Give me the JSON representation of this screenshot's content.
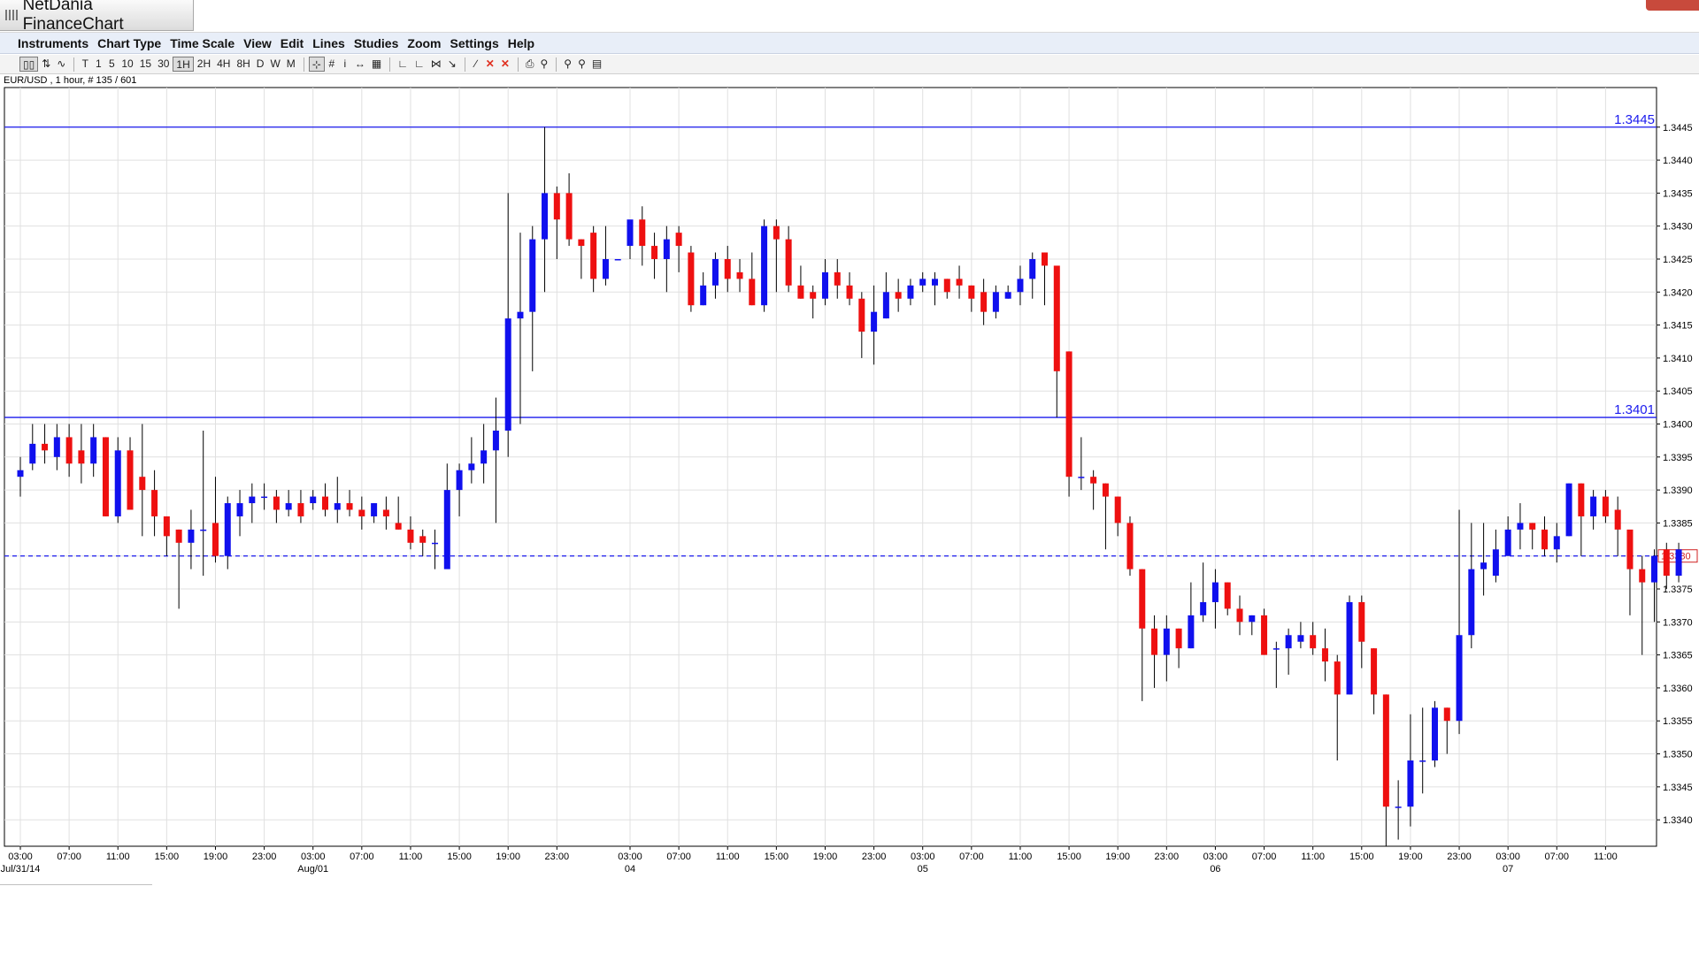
{
  "window": {
    "title": "NetDania FinanceChart"
  },
  "menu": [
    "Instruments",
    "Chart Type",
    "Time Scale",
    "View",
    "Edit",
    "Lines",
    "Studies",
    "Zoom",
    "Settings",
    "Help"
  ],
  "toolbar": {
    "timeframes": [
      "T",
      "1",
      "5",
      "10",
      "15",
      "30",
      "1H",
      "2H",
      "4H",
      "8H",
      "D",
      "W",
      "M"
    ],
    "selected_timeframe": "1H"
  },
  "instrument_label": "EUR/USD , 1 hour, # 135 / 601",
  "colors": {
    "up": "#1010ee",
    "down": "#ee1010",
    "hline": "#1a1aee",
    "grid": "#e0e0e0"
  },
  "chart_data": {
    "type": "candlestick",
    "ylim": [
      1.3336,
      1.3451
    ],
    "y_ticks": [
      "1.3445",
      "1.3440",
      "1.3435",
      "1.3430",
      "1.3425",
      "1.3420",
      "1.3415",
      "1.3410",
      "1.3405",
      "1.3400",
      "1.3395",
      "1.3390",
      "1.3385",
      "1.3380",
      "1.3375",
      "1.3370",
      "1.3365",
      "1.3360",
      "1.3355",
      "1.3350",
      "1.3345",
      "1.3340"
    ],
    "x_ticks": [
      {
        "i": 0,
        "label": "03:00",
        "date": "Jul/31/14"
      },
      {
        "i": 4,
        "label": "07:00"
      },
      {
        "i": 8,
        "label": "11:00"
      },
      {
        "i": 12,
        "label": "15:00"
      },
      {
        "i": 16,
        "label": "19:00"
      },
      {
        "i": 20,
        "label": "23:00"
      },
      {
        "i": 24,
        "label": "03:00",
        "date": "Aug/01"
      },
      {
        "i": 28,
        "label": "07:00"
      },
      {
        "i": 32,
        "label": "11:00"
      },
      {
        "i": 36,
        "label": "15:00"
      },
      {
        "i": 40,
        "label": "19:00"
      },
      {
        "i": 44,
        "label": "23:00"
      },
      {
        "i": 50,
        "label": "03:00",
        "date": "04"
      },
      {
        "i": 54,
        "label": "07:00"
      },
      {
        "i": 58,
        "label": "11:00"
      },
      {
        "i": 62,
        "label": "15:00"
      },
      {
        "i": 66,
        "label": "19:00"
      },
      {
        "i": 70,
        "label": "23:00"
      },
      {
        "i": 74,
        "label": "03:00",
        "date": "05"
      },
      {
        "i": 78,
        "label": "07:00"
      },
      {
        "i": 82,
        "label": "11:00"
      },
      {
        "i": 86,
        "label": "15:00"
      },
      {
        "i": 90,
        "label": "19:00"
      },
      {
        "i": 94,
        "label": "23:00"
      },
      {
        "i": 98,
        "label": "03:00",
        "date": "06"
      },
      {
        "i": 102,
        "label": "07:00"
      },
      {
        "i": 106,
        "label": "11:00"
      },
      {
        "i": 110,
        "label": "15:00"
      },
      {
        "i": 114,
        "label": "19:00"
      },
      {
        "i": 118,
        "label": "23:00"
      },
      {
        "i": 122,
        "label": "03:00",
        "date": "07"
      },
      {
        "i": 126,
        "label": "07:00"
      },
      {
        "i": 130,
        "label": "11:00"
      }
    ],
    "hlines": [
      {
        "value": 1.3445,
        "label": "1.3445"
      },
      {
        "value": 1.3401,
        "label": "1.3401"
      }
    ],
    "last_price": {
      "value": 1.338,
      "label": "1.3380"
    },
    "candles": [
      [
        1.3392,
        1.3395,
        1.3389,
        1.3393
      ],
      [
        1.3394,
        1.34,
        1.3393,
        1.3397
      ],
      [
        1.3397,
        1.34,
        1.3394,
        1.3396
      ],
      [
        1.3395,
        1.34,
        1.3393,
        1.3398
      ],
      [
        1.3398,
        1.34,
        1.3392,
        1.3394
      ],
      [
        1.3396,
        1.34,
        1.3391,
        1.3394
      ],
      [
        1.3394,
        1.34,
        1.3392,
        1.3398
      ],
      [
        1.3398,
        1.3398,
        1.3386,
        1.3386
      ],
      [
        1.3386,
        1.3398,
        1.3385,
        1.3396
      ],
      [
        1.3396,
        1.3398,
        1.3387,
        1.3387
      ],
      [
        1.3392,
        1.34,
        1.3383,
        1.339
      ],
      [
        1.339,
        1.3393,
        1.3383,
        1.3386
      ],
      [
        1.3386,
        1.3386,
        1.338,
        1.3383
      ],
      [
        1.3384,
        1.3384,
        1.3372,
        1.3382
      ],
      [
        1.3382,
        1.3387,
        1.3378,
        1.3384
      ],
      [
        1.3384,
        1.3399,
        1.3377,
        1.3384
      ],
      [
        1.3385,
        1.3392,
        1.3379,
        1.338
      ],
      [
        1.338,
        1.3389,
        1.3378,
        1.3388
      ],
      [
        1.3386,
        1.339,
        1.3383,
        1.3388
      ],
      [
        1.3388,
        1.3391,
        1.3385,
        1.3389
      ],
      [
        1.3389,
        1.3391,
        1.3387,
        1.3389
      ],
      [
        1.3389,
        1.339,
        1.3385,
        1.3387
      ],
      [
        1.3387,
        1.339,
        1.3386,
        1.3388
      ],
      [
        1.3388,
        1.339,
        1.3385,
        1.3386
      ],
      [
        1.3388,
        1.339,
        1.3387,
        1.3389
      ],
      [
        1.3389,
        1.3391,
        1.3386,
        1.3387
      ],
      [
        1.3387,
        1.3392,
        1.3385,
        1.3388
      ],
      [
        1.3388,
        1.339,
        1.3386,
        1.3387
      ],
      [
        1.3387,
        1.3389,
        1.3384,
        1.3386
      ],
      [
        1.3386,
        1.3388,
        1.3385,
        1.3388
      ],
      [
        1.3387,
        1.3389,
        1.3384,
        1.3386
      ],
      [
        1.3385,
        1.3389,
        1.3384,
        1.3384
      ],
      [
        1.3384,
        1.3386,
        1.3381,
        1.3382
      ],
      [
        1.3383,
        1.3384,
        1.338,
        1.3382
      ],
      [
        1.3382,
        1.3384,
        1.3378,
        1.3382
      ],
      [
        1.3378,
        1.3394,
        1.3379,
        1.339
      ],
      [
        1.339,
        1.3394,
        1.3386,
        1.3393
      ],
      [
        1.3393,
        1.3398,
        1.3391,
        1.3394
      ],
      [
        1.3394,
        1.34,
        1.3391,
        1.3396
      ],
      [
        1.3396,
        1.3404,
        1.3385,
        1.3399
      ],
      [
        1.3399,
        1.3435,
        1.3395,
        1.3416
      ],
      [
        1.3416,
        1.3429,
        1.34,
        1.3417
      ],
      [
        1.3417,
        1.343,
        1.3408,
        1.3428
      ],
      [
        1.3428,
        1.3445,
        1.342,
        1.3435
      ],
      [
        1.3435,
        1.3436,
        1.3425,
        1.3431
      ],
      [
        1.3435,
        1.3438,
        1.3427,
        1.3428
      ],
      [
        1.3428,
        1.3428,
        1.3422,
        1.3427
      ],
      [
        1.3429,
        1.343,
        1.342,
        1.3422
      ],
      [
        1.3422,
        1.343,
        1.3421,
        1.3425
      ],
      [
        1.3425,
        1.3425,
        1.3425,
        1.3425
      ],
      [
        1.3427,
        1.343,
        1.3425,
        1.3431
      ],
      [
        1.3431,
        1.3433,
        1.3424,
        1.3427
      ],
      [
        1.3427,
        1.3429,
        1.3422,
        1.3425
      ],
      [
        1.3425,
        1.343,
        1.342,
        1.3428
      ],
      [
        1.3429,
        1.343,
        1.3423,
        1.3427
      ],
      [
        1.3426,
        1.3427,
        1.3417,
        1.3418
      ],
      [
        1.3418,
        1.3423,
        1.3418,
        1.3421
      ],
      [
        1.3421,
        1.3426,
        1.3419,
        1.3425
      ],
      [
        1.3425,
        1.3427,
        1.342,
        1.3422
      ],
      [
        1.3423,
        1.3425,
        1.342,
        1.3422
      ],
      [
        1.3422,
        1.3426,
        1.3418,
        1.3418
      ],
      [
        1.3418,
        1.3431,
        1.3417,
        1.343
      ],
      [
        1.343,
        1.3431,
        1.342,
        1.3428
      ],
      [
        1.3428,
        1.343,
        1.342,
        1.3421
      ],
      [
        1.3421,
        1.3424,
        1.3419,
        1.3419
      ],
      [
        1.342,
        1.3421,
        1.3416,
        1.3419
      ],
      [
        1.3419,
        1.3425,
        1.3418,
        1.3423
      ],
      [
        1.3423,
        1.3425,
        1.3419,
        1.3421
      ],
      [
        1.3421,
        1.3423,
        1.3418,
        1.3419
      ],
      [
        1.3419,
        1.342,
        1.341,
        1.3414
      ],
      [
        1.3414,
        1.3421,
        1.3409,
        1.3417
      ],
      [
        1.3416,
        1.3423,
        1.3416,
        1.342
      ],
      [
        1.342,
        1.3422,
        1.3417,
        1.3419
      ],
      [
        1.3419,
        1.3422,
        1.3418,
        1.3421
      ],
      [
        1.3421,
        1.3423,
        1.342,
        1.3422
      ],
      [
        1.3421,
        1.3423,
        1.3418,
        1.3422
      ],
      [
        1.3422,
        1.3422,
        1.3419,
        1.342
      ],
      [
        1.3422,
        1.3424,
        1.3419,
        1.3421
      ],
      [
        1.3421,
        1.3421,
        1.3417,
        1.3419
      ],
      [
        1.342,
        1.3422,
        1.3415,
        1.3417
      ],
      [
        1.3417,
        1.3421,
        1.3416,
        1.342
      ],
      [
        1.3419,
        1.3421,
        1.3419,
        1.342
      ],
      [
        1.342,
        1.3424,
        1.3418,
        1.3422
      ],
      [
        1.3422,
        1.3426,
        1.3419,
        1.3425
      ],
      [
        1.3426,
        1.3426,
        1.3418,
        1.3424
      ],
      [
        1.3424,
        1.3424,
        1.3401,
        1.3408
      ],
      [
        1.3411,
        1.3411,
        1.3389,
        1.3392
      ],
      [
        1.3392,
        1.3398,
        1.339,
        1.3392
      ],
      [
        1.3392,
        1.3393,
        1.3387,
        1.3391
      ],
      [
        1.3391,
        1.3391,
        1.3381,
        1.3389
      ],
      [
        1.3389,
        1.3389,
        1.3383,
        1.3385
      ],
      [
        1.3385,
        1.3386,
        1.3377,
        1.3378
      ],
      [
        1.3378,
        1.3378,
        1.3358,
        1.3369
      ],
      [
        1.3369,
        1.3371,
        1.336,
        1.3365
      ],
      [
        1.3365,
        1.3371,
        1.3361,
        1.3369
      ],
      [
        1.3369,
        1.3369,
        1.3363,
        1.3366
      ],
      [
        1.3366,
        1.3376,
        1.3366,
        1.3371
      ],
      [
        1.3371,
        1.3379,
        1.337,
        1.3373
      ],
      [
        1.3373,
        1.3378,
        1.3369,
        1.3376
      ],
      [
        1.3376,
        1.3376,
        1.3371,
        1.3372
      ],
      [
        1.3372,
        1.3374,
        1.3368,
        1.337
      ],
      [
        1.337,
        1.3371,
        1.3368,
        1.3371
      ],
      [
        1.3371,
        1.3372,
        1.3365,
        1.3365
      ],
      [
        1.3366,
        1.3367,
        1.336,
        1.3366
      ],
      [
        1.3366,
        1.3369,
        1.3362,
        1.3368
      ],
      [
        1.3367,
        1.337,
        1.3366,
        1.3368
      ],
      [
        1.3368,
        1.337,
        1.3365,
        1.3366
      ],
      [
        1.3366,
        1.3369,
        1.3361,
        1.3364
      ],
      [
        1.3364,
        1.3365,
        1.3349,
        1.3359
      ],
      [
        1.3359,
        1.3374,
        1.3359,
        1.3373
      ],
      [
        1.3373,
        1.3374,
        1.3363,
        1.3367
      ],
      [
        1.3366,
        1.3366,
        1.3356,
        1.3359
      ],
      [
        1.3359,
        1.3359,
        1.3336,
        1.3342
      ],
      [
        1.3342,
        1.3346,
        1.3337,
        1.3342
      ],
      [
        1.3342,
        1.3356,
        1.3339,
        1.3349
      ],
      [
        1.3349,
        1.3357,
        1.3344,
        1.3349
      ],
      [
        1.3349,
        1.3358,
        1.3348,
        1.3357
      ],
      [
        1.3357,
        1.3357,
        1.335,
        1.3355
      ],
      [
        1.3355,
        1.3387,
        1.3353,
        1.3368
      ],
      [
        1.3368,
        1.3385,
        1.3366,
        1.3378
      ],
      [
        1.3378,
        1.3385,
        1.3374,
        1.3379
      ],
      [
        1.3377,
        1.3384,
        1.3376,
        1.3381
      ],
      [
        1.338,
        1.3386,
        1.338,
        1.3384
      ],
      [
        1.3384,
        1.3388,
        1.3381,
        1.3385
      ],
      [
        1.3385,
        1.3385,
        1.3381,
        1.3384
      ],
      [
        1.3384,
        1.3386,
        1.338,
        1.3381
      ],
      [
        1.3381,
        1.3385,
        1.3379,
        1.3383
      ],
      [
        1.3383,
        1.3391,
        1.3383,
        1.3391
      ],
      [
        1.3391,
        1.3391,
        1.338,
        1.3386
      ],
      [
        1.3386,
        1.339,
        1.3384,
        1.3389
      ],
      [
        1.3389,
        1.339,
        1.3385,
        1.3386
      ],
      [
        1.3387,
        1.3389,
        1.338,
        1.3384
      ],
      [
        1.3384,
        1.3383,
        1.3371,
        1.3378
      ],
      [
        1.3378,
        1.338,
        1.3365,
        1.3376
      ],
      [
        1.3376,
        1.3381,
        1.337,
        1.338
      ],
      [
        1.3381,
        1.3382,
        1.3375,
        1.3377
      ],
      [
        1.3377,
        1.3382,
        1.3376,
        1.3381
      ]
    ]
  }
}
